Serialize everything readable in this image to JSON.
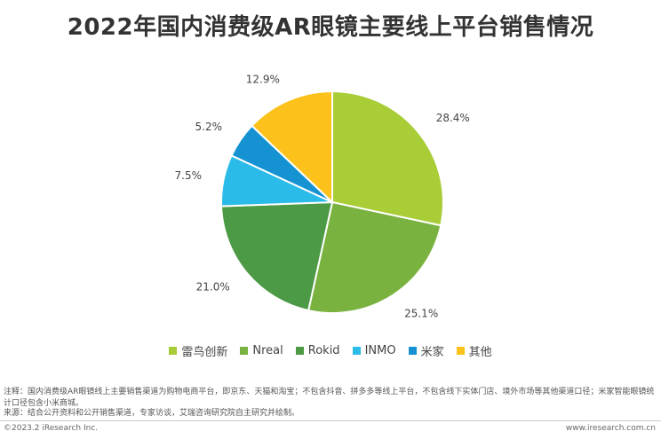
{
  "title": "2022年国内消费级AR眼镜主要线上平台销售情况",
  "chart_data": {
    "type": "pie",
    "slices": [
      {
        "name": "雷鸟创新",
        "value": 28.4,
        "label": "28.4%",
        "color": "#a8cd37"
      },
      {
        "name": "Nreal",
        "value": 25.1,
        "label": "25.1%",
        "color": "#7ab23f"
      },
      {
        "name": "Rokid",
        "value": 21.0,
        "label": "21.0%",
        "color": "#4d9a46"
      },
      {
        "name": "INMO",
        "value": 7.5,
        "label": "7.5%",
        "color": "#2bbbe9"
      },
      {
        "name": "米家",
        "value": 5.2,
        "label": "5.2%",
        "color": "#1592d2"
      },
      {
        "name": "其他",
        "value": 12.9,
        "label": "12.9%",
        "color": "#fcc21b"
      }
    ],
    "legend_position": "bottom",
    "start_angle": "12 o'clock",
    "direction": "clockwise"
  },
  "notes": {
    "note_line1": "注释：国内消费级AR眼镜线上主要销售渠道为购物电商平台，即京东、天猫和淘宝；不包含抖音、拼多多等线上平台，不包含线下实体门店、境外市场等其他渠道口径；米家智能眼镜统计口径包含小米商城。",
    "source_line": "来源：结合公开资料和公开销售渠道，专家访谈，艾瑞咨询研究院自主研究并绘制。"
  },
  "footer": {
    "copyright": "©2023.2 iResearch Inc.",
    "website": "www.iresearch.com.cn"
  }
}
